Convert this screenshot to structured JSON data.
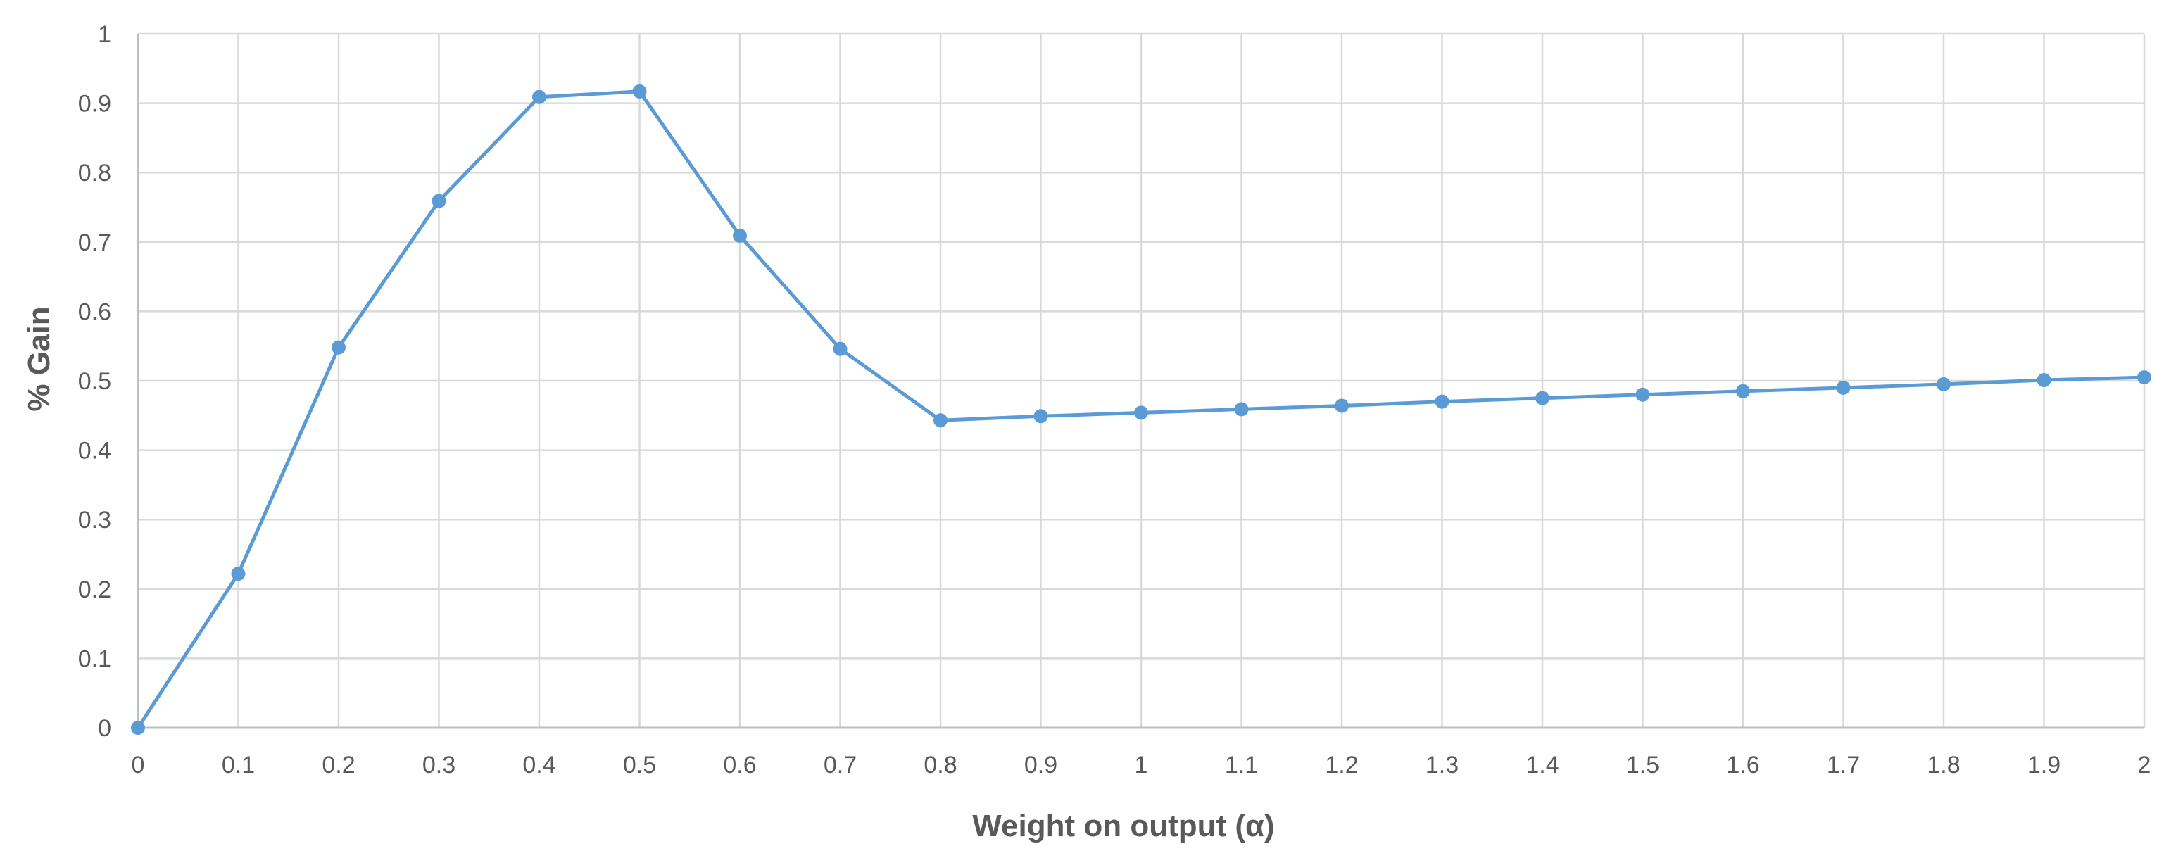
{
  "chart_data": {
    "type": "line",
    "title": "",
    "xlabel": "Weight on output (α)",
    "ylabel": "% Gain",
    "xlim": [
      0,
      2
    ],
    "ylim": [
      0,
      1
    ],
    "x_ticks": [
      "0",
      "0.1",
      "0.2",
      "0.3",
      "0.4",
      "0.5",
      "0.6",
      "0.7",
      "0.8",
      "0.9",
      "1",
      "1.1",
      "1.2",
      "1.3",
      "1.4",
      "1.5",
      "1.6",
      "1.7",
      "1.8",
      "1.9",
      "2"
    ],
    "y_ticks": [
      "0",
      "0.1",
      "0.2",
      "0.3",
      "0.4",
      "0.5",
      "0.6",
      "0.7",
      "0.8",
      "0.9",
      "1"
    ],
    "grid": true,
    "legend": "none",
    "series_color": "#5B9BD5",
    "grid_color": "#D9D9D9",
    "series": [
      {
        "x": [
          0,
          0.1,
          0.2,
          0.3,
          0.4,
          0.5,
          0.6,
          0.7,
          0.8,
          0.9,
          1,
          1.1,
          1.2,
          1.3,
          1.4,
          1.5,
          1.6,
          1.7,
          1.8,
          1.9,
          2
        ],
        "values": [
          0,
          0.222,
          0.548,
          0.759,
          0.909,
          0.917,
          0.709,
          0.546,
          0.443,
          0.449,
          0.454,
          0.459,
          0.464,
          0.47,
          0.475,
          0.48,
          0.485,
          0.49,
          0.495,
          0.501,
          0.505
        ]
      }
    ]
  }
}
